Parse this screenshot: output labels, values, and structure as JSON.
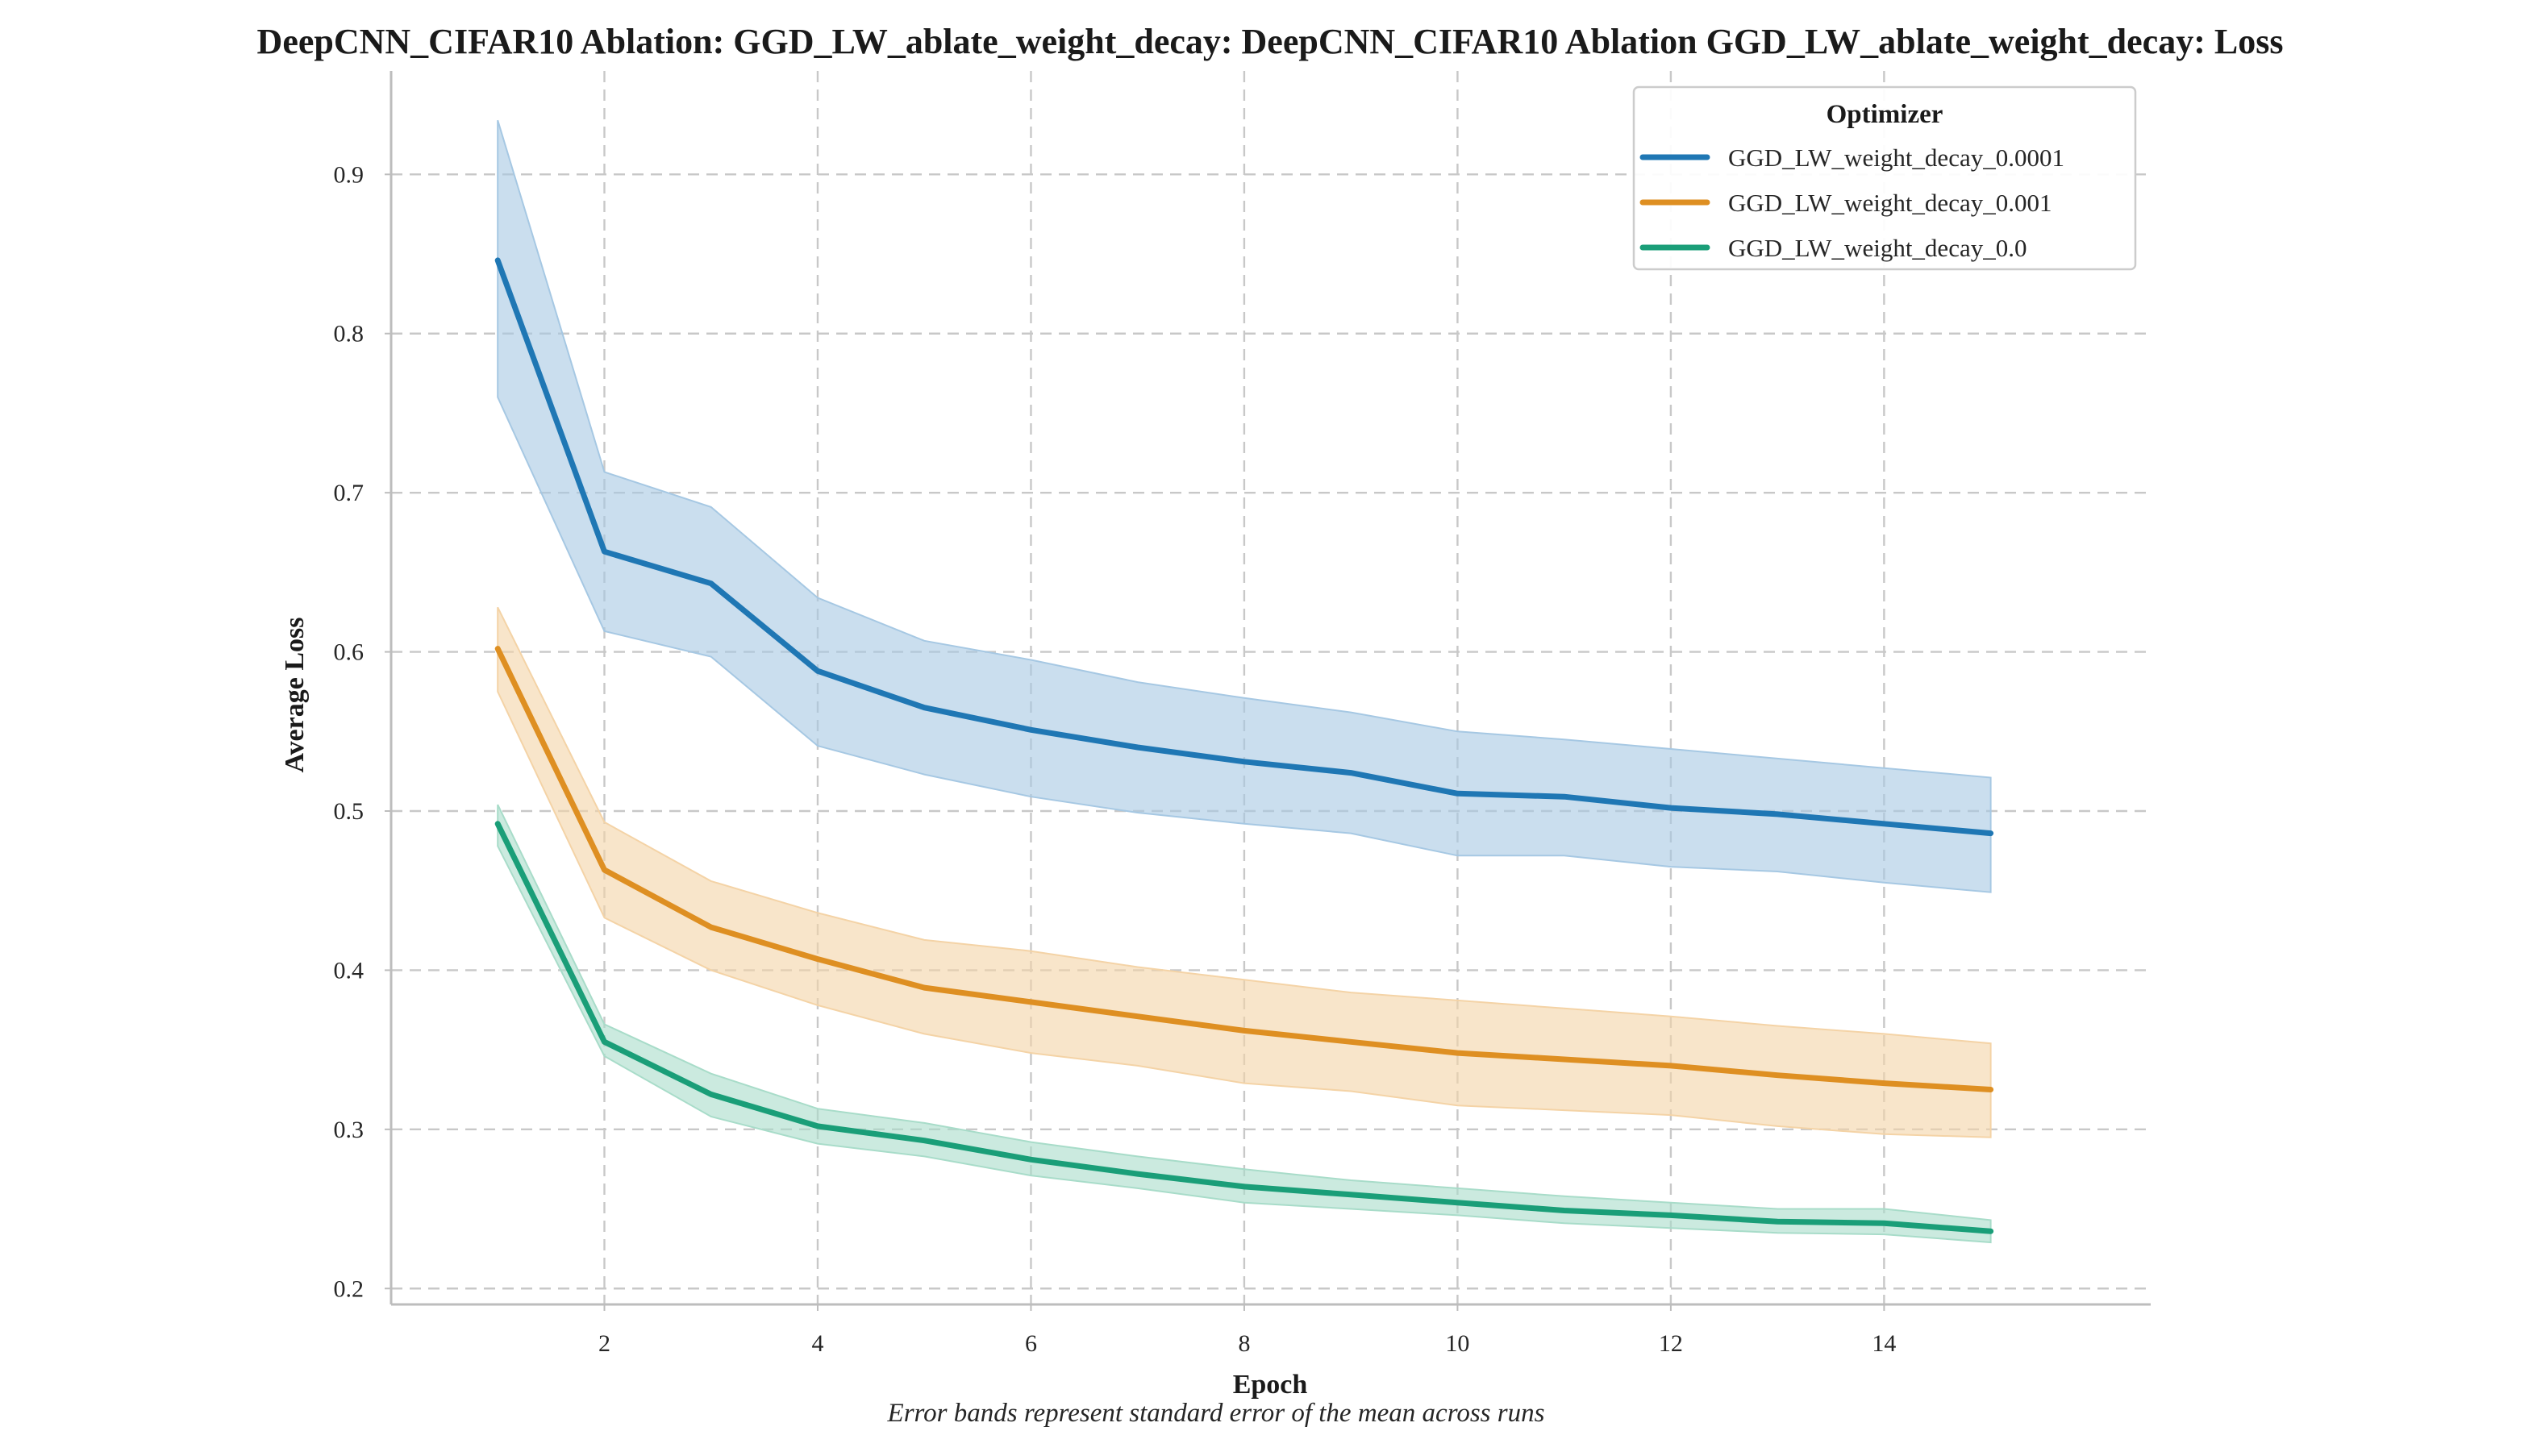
{
  "chart_data": {
    "type": "line",
    "title": "DeepCNN_CIFAR10 Ablation: GGD_LW_ablate_weight_decay: DeepCNN_CIFAR10 Ablation GGD_LW_ablate_weight_decay: Loss",
    "xlabel": "Epoch",
    "ylabel": "Average Loss",
    "caption": "Error bands represent standard error of the mean across runs",
    "x": [
      1,
      2,
      3,
      4,
      5,
      6,
      7,
      8,
      9,
      10,
      11,
      12,
      13,
      14,
      15
    ],
    "xlim": [
      0.0,
      16.5
    ],
    "ylim": [
      0.19,
      0.965
    ],
    "xticks": [
      2,
      4,
      6,
      8,
      10,
      12,
      14
    ],
    "yticks": [
      0.2,
      0.3,
      0.4,
      0.5,
      0.6,
      0.7,
      0.8,
      0.9
    ],
    "grid": true,
    "legend": {
      "title": "Optimizer",
      "placement": "top-right"
    },
    "series": [
      {
        "name": "GGD_LW_weight_decay_0.0001",
        "color": "#1f77b4",
        "band_color": "#a6c8e3",
        "values": [
          0.846,
          0.663,
          0.643,
          0.588,
          0.565,
          0.551,
          0.54,
          0.531,
          0.524,
          0.511,
          0.509,
          0.502,
          0.498,
          0.492,
          0.486
        ],
        "lower": [
          0.76,
          0.613,
          0.597,
          0.541,
          0.523,
          0.509,
          0.499,
          0.492,
          0.486,
          0.472,
          0.472,
          0.465,
          0.462,
          0.455,
          0.449
        ],
        "upper": [
          0.934,
          0.713,
          0.691,
          0.634,
          0.607,
          0.595,
          0.581,
          0.571,
          0.562,
          0.55,
          0.545,
          0.539,
          0.533,
          0.527,
          0.521
        ]
      },
      {
        "name": "GGD_LW_weight_decay_0.001",
        "color": "#de8f22",
        "band_color": "#f4d3a6",
        "values": [
          0.602,
          0.463,
          0.427,
          0.407,
          0.389,
          0.38,
          0.371,
          0.362,
          0.355,
          0.348,
          0.344,
          0.34,
          0.334,
          0.329,
          0.325
        ],
        "lower": [
          0.575,
          0.433,
          0.4,
          0.378,
          0.36,
          0.348,
          0.34,
          0.329,
          0.324,
          0.315,
          0.312,
          0.309,
          0.302,
          0.297,
          0.295
        ],
        "upper": [
          0.628,
          0.493,
          0.456,
          0.436,
          0.419,
          0.412,
          0.402,
          0.394,
          0.386,
          0.381,
          0.376,
          0.371,
          0.365,
          0.36,
          0.354
        ]
      },
      {
        "name": "GGD_LW_weight_decay_0.0",
        "color": "#1a9e78",
        "band_color": "#a8dcc9",
        "values": [
          0.492,
          0.355,
          0.322,
          0.302,
          0.293,
          0.281,
          0.272,
          0.264,
          0.259,
          0.254,
          0.249,
          0.246,
          0.242,
          0.241,
          0.236
        ],
        "lower": [
          0.478,
          0.346,
          0.308,
          0.291,
          0.283,
          0.271,
          0.263,
          0.254,
          0.25,
          0.246,
          0.241,
          0.238,
          0.235,
          0.234,
          0.229
        ],
        "upper": [
          0.504,
          0.366,
          0.335,
          0.313,
          0.304,
          0.292,
          0.283,
          0.275,
          0.268,
          0.263,
          0.258,
          0.254,
          0.25,
          0.25,
          0.243
        ]
      }
    ]
  }
}
